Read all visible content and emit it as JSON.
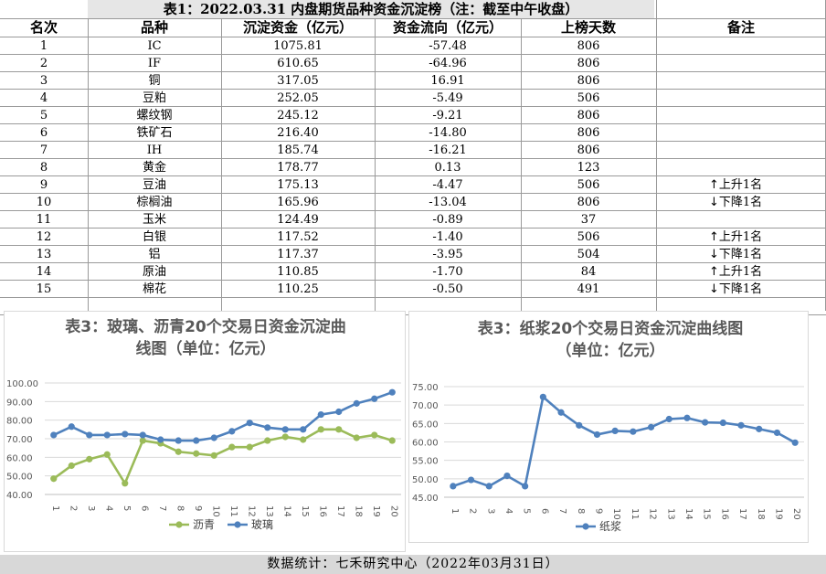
{
  "table": {
    "title": "表1：2022.03.31 内盘期货品种资金沉淀榜（注：截至中午收盘）",
    "headers": [
      "名次",
      "品种",
      "沉淀资金（亿元）",
      "资金流向（亿元）",
      "上榜天数",
      "备注"
    ],
    "rows": [
      {
        "rank": "1",
        "name": "IC",
        "fund": "1075.81",
        "flow": "-57.48",
        "days": "806",
        "note": "",
        "arrow": ""
      },
      {
        "rank": "2",
        "name": "IF",
        "fund": "610.65",
        "flow": "-64.96",
        "days": "806",
        "note": "",
        "arrow": ""
      },
      {
        "rank": "3",
        "name": "铜",
        "fund": "317.05",
        "flow": "16.91",
        "days": "806",
        "note": "",
        "arrow": ""
      },
      {
        "rank": "4",
        "name": "豆粕",
        "fund": "252.05",
        "flow": "-5.49",
        "days": "506",
        "note": "",
        "arrow": ""
      },
      {
        "rank": "5",
        "name": "螺纹钢",
        "fund": "245.12",
        "flow": "-9.21",
        "days": "806",
        "note": "",
        "arrow": ""
      },
      {
        "rank": "6",
        "name": "铁矿石",
        "fund": "216.40",
        "flow": "-14.80",
        "days": "806",
        "note": "",
        "arrow": ""
      },
      {
        "rank": "7",
        "name": "IH",
        "fund": "185.74",
        "flow": "-16.21",
        "days": "806",
        "note": "",
        "arrow": ""
      },
      {
        "rank": "8",
        "name": "黄金",
        "fund": "178.77",
        "flow": "0.13",
        "days": "123",
        "note": "",
        "arrow": ""
      },
      {
        "rank": "9",
        "name": "豆油",
        "fund": "175.13",
        "flow": "-4.47",
        "days": "506",
        "note": "上升1名",
        "arrow": "↑"
      },
      {
        "rank": "10",
        "name": "棕榈油",
        "fund": "165.96",
        "flow": "-13.04",
        "days": "806",
        "note": "下降1名",
        "arrow": "↓"
      },
      {
        "rank": "11",
        "name": "玉米",
        "fund": "124.49",
        "flow": "-0.89",
        "days": "37",
        "note": "",
        "arrow": ""
      },
      {
        "rank": "12",
        "name": "白银",
        "fund": "117.52",
        "flow": "-1.40",
        "days": "506",
        "note": "上升1名",
        "arrow": "↑"
      },
      {
        "rank": "13",
        "name": "铝",
        "fund": "117.37",
        "flow": "-3.95",
        "days": "504",
        "note": "下降1名",
        "arrow": "↓"
      },
      {
        "rank": "14",
        "name": "原油",
        "fund": "110.85",
        "flow": "-1.70",
        "days": "84",
        "note": "上升1名",
        "arrow": "↑"
      },
      {
        "rank": "15",
        "name": "棉花",
        "fund": "110.25",
        "flow": "-0.50",
        "days": "491",
        "note": "下降1名",
        "arrow": "↓"
      }
    ]
  },
  "colors": {
    "asphalt": "#9bbb59",
    "glass": "#4f81bd",
    "pulp": "#4f81bd",
    "title_gray": "#595959",
    "axis_text": "#595959"
  },
  "chart_data": [
    {
      "type": "line",
      "title": "表3：玻璃、沥青20个交易日资金沉淀曲线图（单位：亿元）",
      "title_lines": [
        "表3：玻璃、沥青20个交易日资金沉淀曲",
        "线图（单位：亿元）"
      ],
      "x": [
        "1",
        "2",
        "3",
        "4",
        "5",
        "6",
        "7",
        "8",
        "9",
        "10",
        "11",
        "12",
        "13",
        "14",
        "15",
        "16",
        "17",
        "18",
        "19",
        "20"
      ],
      "ylim": [
        40,
        100
      ],
      "yticks": [
        "40.00",
        "50.00",
        "60.00",
        "70.00",
        "80.00",
        "90.00",
        "100.00"
      ],
      "series": [
        {
          "name": "沥青",
          "values": [
            48.5,
            55.5,
            59.0,
            61.5,
            46.0,
            69.0,
            67.5,
            63.0,
            62.0,
            61.0,
            65.5,
            65.5,
            69.0,
            71.0,
            69.5,
            75.0,
            75.0,
            70.5,
            72.0,
            69.0
          ]
        },
        {
          "name": "玻璃",
          "values": [
            72.0,
            76.5,
            72.0,
            72.0,
            72.5,
            72.0,
            69.5,
            69.0,
            69.0,
            70.5,
            74.0,
            78.5,
            76.0,
            75.0,
            75.0,
            83.0,
            84.5,
            89.0,
            91.5,
            95.0
          ]
        }
      ],
      "legend": "bottom",
      "legend_order": [
        "沥青",
        "玻璃"
      ],
      "grid": true
    },
    {
      "type": "line",
      "title": "表3：纸浆20个交易日资金沉淀曲线图（单位：亿元）",
      "title_lines": [
        "表3：纸浆20个交易日资金沉淀曲线图",
        "（单位：亿元）"
      ],
      "x": [
        "1",
        "2",
        "3",
        "4",
        "5",
        "6",
        "7",
        "8",
        "9",
        "10",
        "11",
        "12",
        "13",
        "14",
        "15",
        "16",
        "17",
        "18",
        "19",
        "20"
      ],
      "ylim": [
        45,
        75
      ],
      "yticks": [
        "45.00",
        "50.00",
        "55.00",
        "60.00",
        "65.00",
        "70.00",
        "75.00"
      ],
      "series": [
        {
          "name": "纸浆",
          "values": [
            48.0,
            49.7,
            48.0,
            50.8,
            48.0,
            72.2,
            68.0,
            64.5,
            62.0,
            63.0,
            62.8,
            64.0,
            66.2,
            66.5,
            65.3,
            65.2,
            64.5,
            63.5,
            62.5,
            59.8
          ]
        }
      ],
      "legend": "bottom",
      "legend_order": [
        "纸浆"
      ],
      "grid": true
    }
  ],
  "footer": {
    "text": "数据统计：七禾研究中心（2022年03月31日）"
  }
}
